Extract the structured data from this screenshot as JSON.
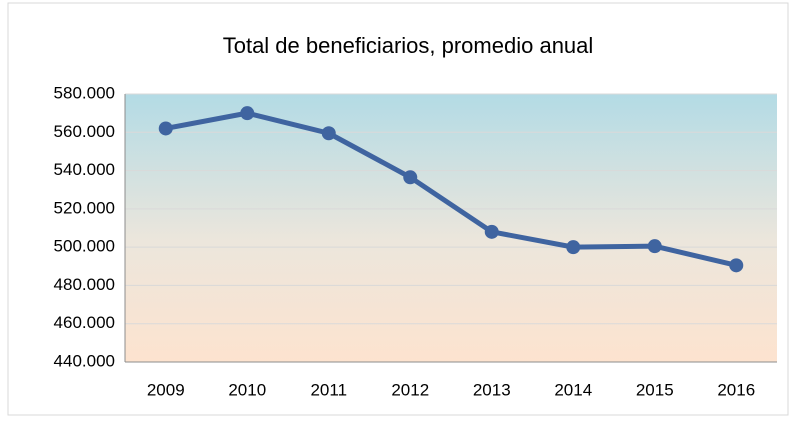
{
  "chart_data": {
    "type": "line",
    "title": "Total de beneficiarios, promedio anual",
    "categories": [
      "2009",
      "2010",
      "2011",
      "2012",
      "2013",
      "2014",
      "2015",
      "2016"
    ],
    "series": [
      {
        "name": "Total de beneficiarios",
        "color": "#3f64a0",
        "values": [
          562000,
          570000,
          559500,
          536500,
          508000,
          500000,
          500500,
          490500
        ]
      }
    ],
    "ylim": [
      440000,
      580000
    ],
    "yticks": [
      {
        "value": 440000,
        "label": "440.000"
      },
      {
        "value": 460000,
        "label": "460.000"
      },
      {
        "value": 480000,
        "label": "480.000"
      },
      {
        "value": 500000,
        "label": "500.000"
      },
      {
        "value": 520000,
        "label": "520.000"
      },
      {
        "value": 540000,
        "label": "540.000"
      },
      {
        "value": 560000,
        "label": "560.000"
      },
      {
        "value": 580000,
        "label": "580.000"
      }
    ],
    "grid": true
  }
}
